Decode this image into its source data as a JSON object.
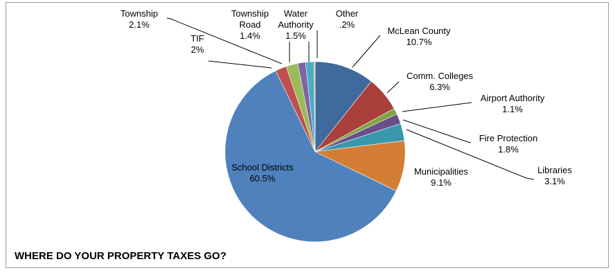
{
  "chart_data": {
    "type": "pie",
    "title": "WHERE DO YOUR PROPERTY TAXES GO?",
    "start_angle_deg": 0,
    "direction": "clockwise",
    "slices": [
      {
        "name": "McLean County",
        "label_lines": [
          "McLean County",
          "10.7%"
        ],
        "value": 10.7,
        "color": "#3e6a9c"
      },
      {
        "name": "Comm. Colleges",
        "label_lines": [
          "Comm. Colleges",
          "6.3%"
        ],
        "value": 6.3,
        "color": "#a9403b"
      },
      {
        "name": "Airport Authority",
        "label_lines": [
          "Airport Authority",
          "1.1%"
        ],
        "value": 1.1,
        "color": "#80a33f"
      },
      {
        "name": "Fire Protection",
        "label_lines": [
          "Fire Protection",
          "1.8%"
        ],
        "value": 1.8,
        "color": "#6a4e8a"
      },
      {
        "name": "Libraries",
        "label_lines": [
          "Libraries",
          "3.1%"
        ],
        "value": 3.1,
        "color": "#3a98ad"
      },
      {
        "name": "Municipalities",
        "label_lines": [
          "Municipalities",
          "9.1%"
        ],
        "value": 9.1,
        "color": "#d47d34"
      },
      {
        "name": "School Districts",
        "label_lines": [
          "School Districts",
          "60.5%"
        ],
        "value": 60.5,
        "color": "#4f81bd"
      },
      {
        "name": "TIF",
        "label_lines": [
          "TIF",
          "2%"
        ],
        "value": 2.0,
        "color": "#c0504d"
      },
      {
        "name": "Township",
        "label_lines": [
          "Township",
          "2.1%"
        ],
        "value": 2.1,
        "color": "#9bbb59"
      },
      {
        "name": "Township Road",
        "label_lines": [
          "Township",
          "Road",
          "1.4%"
        ],
        "value": 1.4,
        "color": "#8064a2"
      },
      {
        "name": "Water Authority",
        "label_lines": [
          "Water",
          "Authority",
          "1.5%"
        ],
        "value": 1.5,
        "color": "#4bacc6"
      },
      {
        "name": "Other",
        "label_lines": [
          "Other",
          ".2%"
        ],
        "value": 0.2,
        "color": "#f79646"
      }
    ]
  }
}
